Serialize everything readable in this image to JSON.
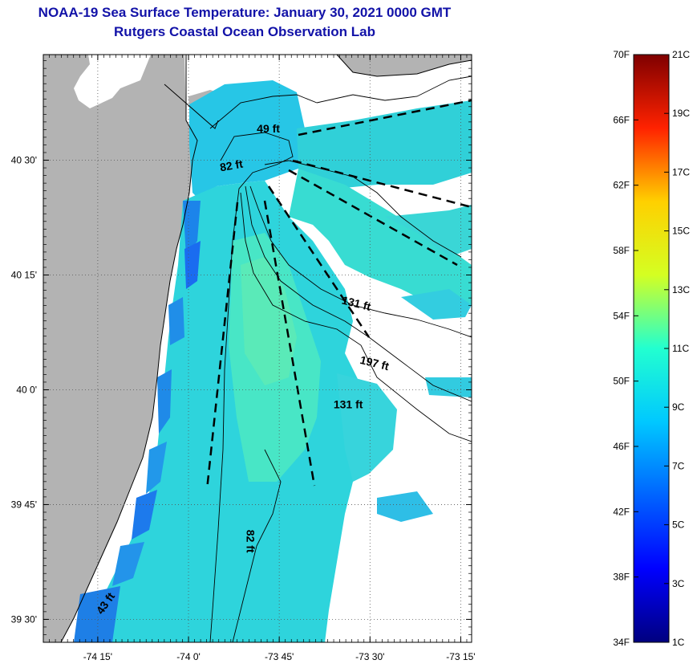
{
  "header": {
    "title": "NOAA-19 Sea Surface Temperature:  January 30, 2021 0000 GMT",
    "subtitle": "Rutgers Coastal Ocean Observation Lab"
  },
  "map": {
    "lon_range": [
      -74.4,
      -73.22
    ],
    "lat_range": [
      39.45,
      40.73
    ],
    "lat_ticks": [
      {
        "value": 40.5,
        "label": "40 30'"
      },
      {
        "value": 40.25,
        "label": "40 15'"
      },
      {
        "value": 40.0,
        "label": "40 0'"
      },
      {
        "value": 39.75,
        "label": "39 45'"
      },
      {
        "value": 39.5,
        "label": "39 30'"
      }
    ],
    "lon_ticks": [
      {
        "value": -74.25,
        "label": "-74 15'"
      },
      {
        "value": -74.0,
        "label": "-74 0'"
      },
      {
        "value": -73.75,
        "label": "-73 45'"
      },
      {
        "value": -73.5,
        "label": "-73 30'"
      },
      {
        "value": -73.25,
        "label": "-73 15'"
      }
    ],
    "depth_labels": [
      {
        "text": "49 ft",
        "lon": -73.78,
        "lat": 40.56,
        "rotate": 0
      },
      {
        "text": "82 ft",
        "lon": -73.88,
        "lat": 40.48,
        "rotate": -10
      },
      {
        "text": "131 ft",
        "lon": -73.54,
        "lat": 40.18,
        "rotate": 14
      },
      {
        "text": "197 ft",
        "lon": -73.49,
        "lat": 40.05,
        "rotate": 14
      },
      {
        "text": "131 ft",
        "lon": -73.56,
        "lat": 39.96,
        "rotate": 0
      },
      {
        "text": "82 ft",
        "lon": -73.84,
        "lat": 39.67,
        "rotate": 90
      },
      {
        "text": "43 ft",
        "lon": -74.22,
        "lat": 39.53,
        "rotate": -55
      }
    ]
  },
  "colorbar": {
    "f_labels": [
      "70F",
      "66F",
      "62F",
      "58F",
      "54F",
      "50F",
      "46F",
      "42F",
      "38F",
      "34F"
    ],
    "c_labels": [
      "21C",
      "19C",
      "17C",
      "15C",
      "13C",
      "11C",
      "9C",
      "7C",
      "5C",
      "3C",
      "1C"
    ],
    "range_c": [
      1,
      21
    ]
  },
  "colors": {
    "title": "#1212a8",
    "land": "#b3b3b3",
    "no_data": "#ffffff"
  }
}
